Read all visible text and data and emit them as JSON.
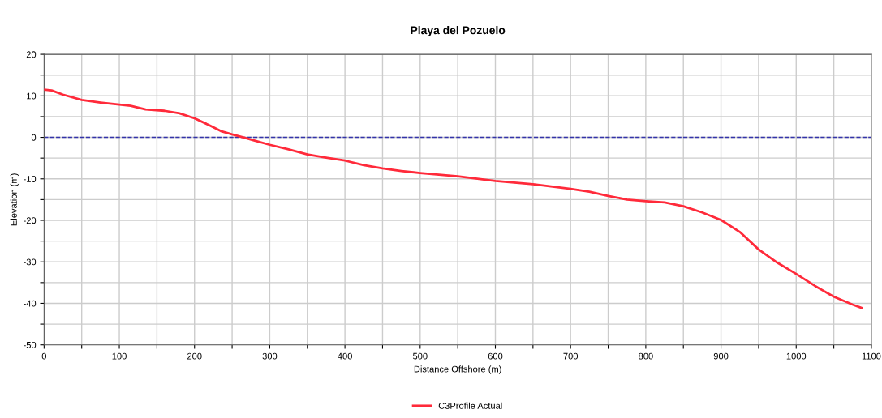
{
  "chart_data": {
    "type": "line",
    "title": "Playa del Pozuelo",
    "xlabel": "Distance Offshore (m)",
    "ylabel": "Elevation (m)",
    "x": [
      0,
      10,
      25,
      50,
      75,
      100,
      115,
      135,
      160,
      180,
      200,
      220,
      235,
      250,
      265,
      280,
      300,
      325,
      350,
      375,
      400,
      425,
      450,
      475,
      500,
      550,
      600,
      650,
      700,
      725,
      750,
      775,
      800,
      825,
      850,
      875,
      900,
      925,
      950,
      975,
      1000,
      1025,
      1050,
      1075,
      1087
    ],
    "series": [
      {
        "name": "C3Profile Actual",
        "color": "#ff2a3a",
        "values": [
          11.5,
          11.3,
          10.3,
          9,
          8.4,
          7.9,
          7.6,
          6.7,
          6.4,
          5.8,
          4.6,
          2.9,
          1.5,
          0.7,
          0,
          -0.8,
          -1.8,
          -2.9,
          -4.1,
          -4.9,
          -5.6,
          -6.7,
          -7.5,
          -8.1,
          -8.6,
          -9.4,
          -10.5,
          -11.3,
          -12.4,
          -13.1,
          -14.1,
          -15,
          -15.4,
          -15.7,
          -16.6,
          -18.1,
          -19.9,
          -22.8,
          -27,
          -30.2,
          -32.9,
          -35.8,
          -38.4,
          -40.3,
          -41.1
        ]
      }
    ],
    "xlim": [
      0,
      1100
    ],
    "xticks": [
      0,
      {
        "value": 50,
        "label": null
      },
      100,
      {
        "value": 150,
        "label": null
      },
      200,
      {
        "value": 250,
        "label": null
      },
      300,
      {
        "value": 350,
        "label": null
      },
      400,
      {
        "value": 450,
        "label": null
      },
      500,
      {
        "value": 550,
        "label": null
      },
      600,
      {
        "value": 650,
        "label": null
      },
      700,
      {
        "value": 750,
        "label": null
      },
      800,
      {
        "value": 850,
        "label": null
      },
      900,
      {
        "value": 950,
        "label": null
      },
      1000,
      {
        "value": 1050,
        "label": null
      },
      1100
    ],
    "ylim": [
      -50,
      20
    ],
    "yticks": [
      -50,
      {
        "value": -45,
        "label": null
      },
      -40,
      {
        "value": -35,
        "label": null
      },
      -30,
      {
        "value": -25,
        "label": null
      },
      -20,
      {
        "value": -15,
        "label": null
      },
      -10,
      {
        "value": -5,
        "label": null
      },
      0,
      {
        "value": 5,
        "label": null
      },
      10,
      {
        "value": 15,
        "label": null
      },
      20
    ],
    "ref_lines": [
      {
        "axis": "y",
        "value": 0,
        "color": "#3333aa",
        "line_style": "dashed"
      }
    ],
    "grid": true,
    "legend": "bottom",
    "marker": "none",
    "line_style": "solid"
  }
}
